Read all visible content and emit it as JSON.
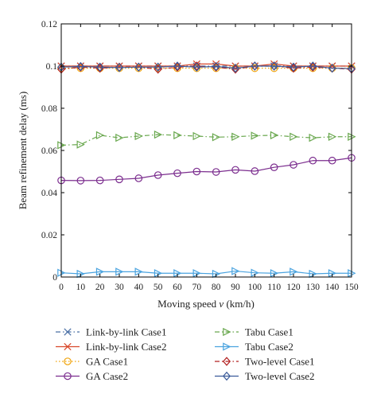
{
  "chart_data": {
    "type": "line",
    "xlabel_prefix": "Moving speed ",
    "xlabel_var": "v",
    "xlabel_suffix": " (km/h)",
    "ylabel": "Beam refinement delay (ms)",
    "xlim": [
      0,
      150
    ],
    "ylim": [
      0,
      0.12
    ],
    "x_ticks": [
      0,
      10,
      20,
      30,
      40,
      50,
      60,
      70,
      80,
      90,
      100,
      110,
      120,
      130,
      140,
      150
    ],
    "y_ticks": [
      0,
      0.02,
      0.04,
      0.06,
      0.08,
      0.1,
      0.12
    ],
    "y_tick_labels": [
      "0",
      "0.02",
      "0.04",
      "0.06",
      "0.08",
      "0.1",
      "0.12"
    ],
    "grid": false,
    "legend_position": "bottom",
    "x": [
      0,
      10,
      20,
      30,
      40,
      50,
      60,
      70,
      80,
      90,
      100,
      110,
      120,
      130,
      140,
      150
    ],
    "series": [
      {
        "name": "Link-by-link Case1",
        "color": "#4a6fa5",
        "dash": "dashdot",
        "marker": "x",
        "values": [
          0.1,
          0.1,
          0.1,
          0.1,
          0.1,
          0.1,
          0.1,
          0.1,
          0.1,
          0.1,
          0.1,
          0.1,
          0.1,
          0.1,
          0.1,
          0.1
        ]
      },
      {
        "name": "Link-by-link Case2",
        "color": "#d9482b",
        "dash": "solid",
        "marker": "x",
        "values": [
          0.1,
          0.1,
          0.1,
          0.1,
          0.1,
          0.1,
          0.1,
          0.101,
          0.101,
          0.1,
          0.1,
          0.101,
          0.1,
          0.1,
          0.1,
          0.1
        ]
      },
      {
        "name": "GA Case1",
        "color": "#f0a30a",
        "dash": "dotted",
        "marker": "circle",
        "values": [
          0.099,
          0.099,
          0.099,
          0.099,
          0.099,
          0.099,
          0.099,
          0.099,
          0.099,
          0.099,
          0.099,
          0.099,
          0.099,
          0.099,
          0.099,
          0.099
        ]
      },
      {
        "name": "GA Case2",
        "color": "#7b2d8e",
        "dash": "solid",
        "marker": "circle",
        "values": [
          0.0458,
          0.0457,
          0.0458,
          0.0463,
          0.0468,
          0.0483,
          0.0492,
          0.05,
          0.0498,
          0.0508,
          0.0502,
          0.052,
          0.0532,
          0.0552,
          0.0552,
          0.0565
        ]
      },
      {
        "name": "Tabu Case1",
        "color": "#6aa84f",
        "dash": "dashdot",
        "marker": "triangle-right",
        "values": [
          0.0625,
          0.0628,
          0.0672,
          0.066,
          0.0668,
          0.0675,
          0.0672,
          0.0668,
          0.0663,
          0.0665,
          0.067,
          0.0672,
          0.0665,
          0.066,
          0.0665,
          0.0665
        ]
      },
      {
        "name": "Tabu Case2",
        "color": "#4aa3df",
        "dash": "solid",
        "marker": "triangle-right",
        "values": [
          0.002,
          0.0015,
          0.0025,
          0.0025,
          0.0025,
          0.0018,
          0.0018,
          0.0018,
          0.0015,
          0.0028,
          0.002,
          0.0018,
          0.0025,
          0.0015,
          0.0018,
          0.0018
        ]
      },
      {
        "name": "Two-level Case1",
        "color": "#b22222",
        "dash": "dashdot",
        "marker": "diamond",
        "values": [
          0.0985,
          0.0995,
          0.099,
          0.0995,
          0.0995,
          0.0985,
          0.0995,
          0.1,
          0.0995,
          0.0985,
          0.1,
          0.1,
          0.099,
          0.0995,
          0.099,
          0.0985
        ]
      },
      {
        "name": "Two-level Case2",
        "color": "#3b5b9a",
        "dash": "solid",
        "marker": "diamond",
        "values": [
          0.0995,
          0.0998,
          0.0995,
          0.0993,
          0.0995,
          0.0995,
          0.1,
          0.0995,
          0.0998,
          0.099,
          0.1,
          0.1,
          0.0995,
          0.1,
          0.099,
          0.0988
        ]
      }
    ]
  }
}
